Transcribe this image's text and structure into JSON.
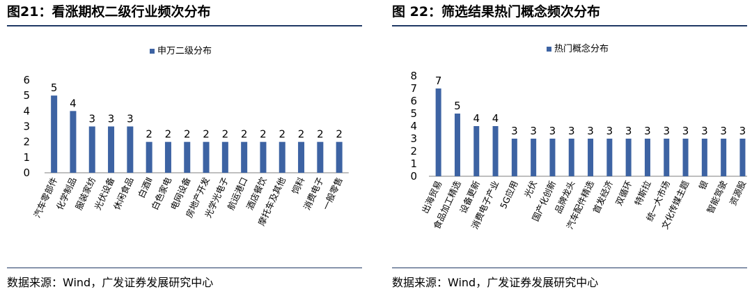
{
  "left": {
    "title": "图21：看涨期权二级行业频次分布",
    "source": "数据来源：Wind，广发证券发展研究中心",
    "chart_data": {
      "type": "bar",
      "categories": [
        "汽车零部件",
        "化学制品",
        "服装家纺",
        "光伏设备",
        "休闲食品",
        "白酒Ⅱ",
        "白色家电",
        "电网设备",
        "房地产开发",
        "光学光电子",
        "航运港口",
        "酒店餐饮",
        "摩托车及其他",
        "饲料",
        "消费电子",
        "一般零售"
      ],
      "series": [
        {
          "name": "申万二级分布",
          "values": [
            5,
            4,
            3,
            3,
            3,
            2,
            2,
            2,
            2,
            2,
            2,
            2,
            2,
            2,
            2,
            2
          ]
        }
      ],
      "ylim": [
        0,
        6
      ],
      "yticks": [
        0,
        1,
        2,
        3,
        4,
        5,
        6
      ],
      "legend": "top-center",
      "grid": false,
      "colors": {
        "bar": "#3d63a3"
      }
    }
  },
  "right": {
    "title": "图 22：筛选结果热门概念频次分布",
    "source": "数据来源：Wind，广发证券发展研究中心",
    "chart_data": {
      "type": "bar",
      "categories": [
        "出海贸易",
        "食品加工精选",
        "设备更新",
        "消费电子产业",
        "5G应用",
        "光伏",
        "国产化创新",
        "品牌龙头",
        "汽车配件精选",
        "首发经济",
        "双循环",
        "特斯拉",
        "统一大市场",
        "文化传媒主题",
        "银",
        "智能驾驶",
        "资源股"
      ],
      "series": [
        {
          "name": "热门概念分布",
          "values": [
            7,
            5,
            4,
            4,
            3,
            3,
            3,
            3,
            3,
            3,
            3,
            3,
            3,
            3,
            3,
            3,
            3
          ]
        }
      ],
      "ylim": [
        0,
        8
      ],
      "yticks": [
        0,
        1,
        2,
        3,
        4,
        5,
        6,
        7,
        8
      ],
      "legend": "top-center",
      "grid": false,
      "colors": {
        "bar": "#3d63a3"
      }
    }
  }
}
